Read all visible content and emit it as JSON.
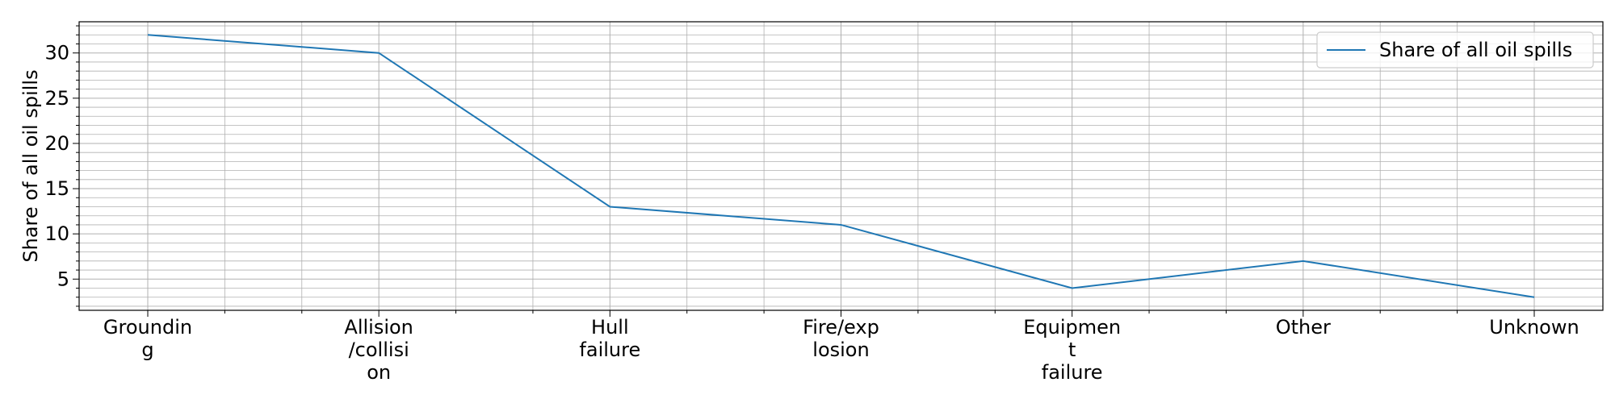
{
  "chart_data": {
    "type": "line",
    "title": "",
    "xlabel": "",
    "ylabel": "Share of all oil spills",
    "categories": [
      [
        "Groundin",
        "g"
      ],
      [
        "Allision",
        "/collisi",
        "on"
      ],
      [
        "Hull",
        "failure"
      ],
      [
        "Fire/exp",
        "losion"
      ],
      [
        "Equipmen",
        "t",
        "failure"
      ],
      [
        "Other"
      ],
      [
        "Unknown"
      ]
    ],
    "series": [
      {
        "name": "Share of all oil spills",
        "values": [
          32,
          30,
          13,
          11,
          4,
          7,
          3
        ],
        "color": "#1f77b4"
      }
    ],
    "ylim": [
      1.55,
      33.45
    ],
    "yticks": [
      "5",
      "10",
      "15",
      "20",
      "25",
      "30"
    ],
    "grid": "major and minor",
    "legend": {
      "position": "top-right",
      "labels": [
        "Share of all oil spills"
      ]
    }
  }
}
